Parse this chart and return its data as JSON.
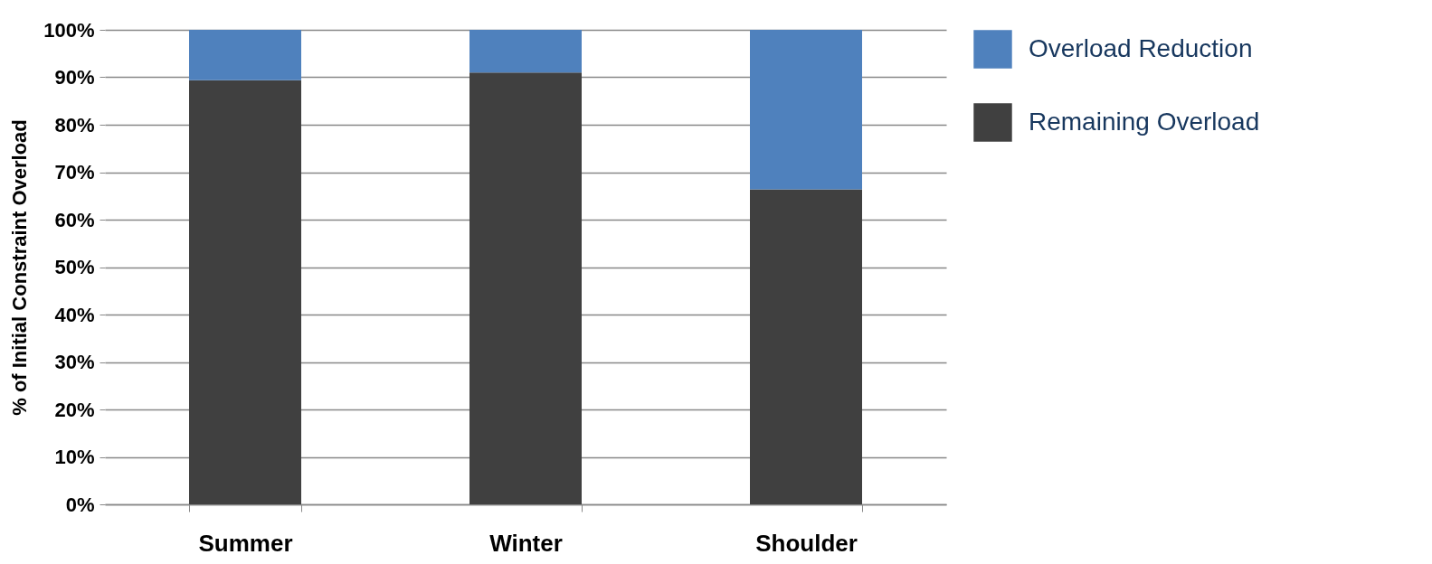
{
  "chart_data": {
    "type": "bar",
    "stacked": true,
    "ylabel": "% of Initial Constraint Overload",
    "categories": [
      "Summer",
      "Winter",
      "Shoulder"
    ],
    "series": [
      {
        "name": "Remaining Overload",
        "color": "#404040",
        "values": [
          89.4,
          91,
          66.4
        ]
      },
      {
        "name": "Overload Reduction",
        "color": "#4f81bd",
        "values": [
          10.6,
          9,
          33.6
        ]
      }
    ],
    "ylim": [
      0,
      100
    ],
    "yticks": [
      {
        "value": 0,
        "label": "0%"
      },
      {
        "value": 10,
        "label": "10%"
      },
      {
        "value": 20,
        "label": "20%"
      },
      {
        "value": 30,
        "label": "30%"
      },
      {
        "value": 40,
        "label": "40%"
      },
      {
        "value": 50,
        "label": "50%"
      },
      {
        "value": 60,
        "label": "60%"
      },
      {
        "value": 70,
        "label": "70%"
      },
      {
        "value": 80,
        "label": "80%"
      },
      {
        "value": 90,
        "label": "90%"
      },
      {
        "value": 100,
        "label": "100%"
      }
    ],
    "grid": "y",
    "legend": "right"
  }
}
